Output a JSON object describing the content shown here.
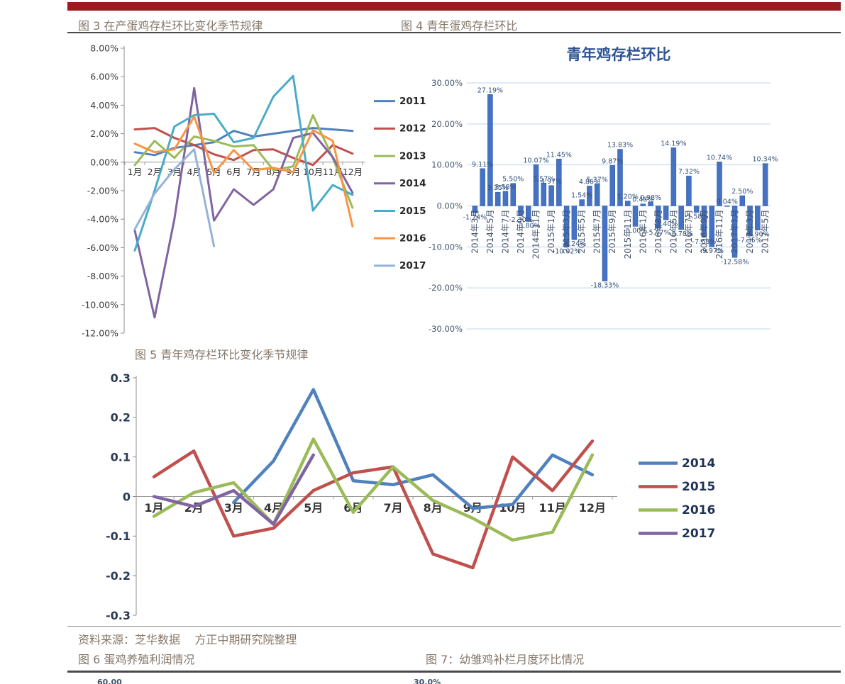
{
  "page": {
    "topbar_color": "#9c1b21"
  },
  "captions": {
    "fig3": "图 3 在产蛋鸡存栏环比变化季节规律",
    "fig4": "图 4 青年蛋鸡存栏环比",
    "fig5": "图 5  青年鸡存栏环比变化季节规律",
    "source": "资料来源：芝华数据    方正中期研究院整理",
    "fig6": "图 6 蛋鸡养殖利润情况",
    "fig7": "图 7：幼雏鸡补栏月度环比情况"
  },
  "partials": {
    "fig6_tick": "60.00",
    "fig7_tick": "30.0%"
  },
  "chart_data": [
    {
      "id": "fig3",
      "type": "line",
      "title": "",
      "caption": "图 3 在产蛋鸡存栏环比变化季节规律",
      "categories": [
        "1月",
        "2月",
        "3月",
        "4月",
        "5月",
        "6月",
        "7月",
        "8月",
        "9月",
        "10月",
        "11月",
        "12月"
      ],
      "series": [
        {
          "name": "2011",
          "color": "#4F81BD",
          "values": [
            0.7,
            0.5,
            1.0,
            1.2,
            1.4,
            2.2,
            1.8,
            2.0,
            2.2,
            2.4,
            2.3,
            2.2
          ]
        },
        {
          "name": "2012",
          "color": "#C0504D",
          "values": [
            2.3,
            2.4,
            1.7,
            1.2,
            0.55,
            0.15,
            0.85,
            0.9,
            0.3,
            -0.2,
            1.2,
            0.6
          ]
        },
        {
          "name": "2013",
          "color": "#9BBB59",
          "values": [
            -0.2,
            1.5,
            0.3,
            1.8,
            1.5,
            1.1,
            1.2,
            -0.55,
            -0.3,
            3.3,
            0.3,
            -3.2
          ]
        },
        {
          "name": "2014",
          "color": "#8064A2",
          "values": [
            -4.8,
            -10.9,
            -4.0,
            5.2,
            -4.1,
            -1.9,
            -3.0,
            -1.9,
            1.7,
            2.05,
            0.35,
            -2.15
          ]
        },
        {
          "name": "2015",
          "color": "#4BACC6",
          "values": [
            -6.2,
            -2.0,
            2.5,
            3.3,
            3.4,
            1.4,
            1.7,
            4.6,
            6.05,
            -3.4,
            -1.6,
            -2.3
          ]
        },
        {
          "name": "2016",
          "color": "#F79646",
          "values": [
            1.3,
            0.7,
            0.9,
            3.2,
            -0.75,
            0.85,
            -0.55,
            -0.4,
            -0.7,
            2.25,
            1.5,
            -4.5
          ]
        },
        {
          "name": "2017",
          "color": "#95B3D7",
          "values": [
            -4.7,
            -2.2,
            -0.5,
            0.9,
            -5.9,
            null,
            null,
            null,
            null,
            null,
            null,
            null
          ]
        }
      ],
      "ylim": [
        -12,
        8
      ],
      "ystep": 2,
      "ytick_format": "percent2",
      "grid": false,
      "legend_position": "right",
      "axis_color": "#3a3a3a"
    },
    {
      "id": "fig4",
      "type": "bar",
      "title": "青年鸡存栏环比",
      "caption": "图 4 青年蛋鸡存栏环比",
      "title_color": "#2E5395",
      "bar_color": "#4472C4",
      "bar_edge_color": "#2E5597",
      "label_color": "#35527C",
      "axis_color": "#44546A",
      "grid_color": "#BDD7EE",
      "categories": [
        "2014年3月",
        "2014年4月",
        "2014年5月",
        "2014年6月",
        "2014年7月",
        "2014年8月",
        "2014年9月",
        "2014年10月",
        "2014年11月",
        "2014年12月",
        "2015年1月",
        "2015年2月",
        "2015年3月",
        "2015年4月",
        "2015年5月",
        "2015年6月",
        "2015年7月",
        "2015年8月",
        "2015年9月",
        "2015年10月",
        "2015年11月",
        "2015年12月",
        "2016年1月",
        "2016年2月",
        "2016年3月",
        "2016年4月",
        "2016年5月",
        "2016年6月",
        "2016年7月",
        "2016年8月",
        "2016年9月",
        "2016年10月",
        "2016年11月",
        "2016年12月",
        "2017年1月",
        "2017年2月",
        "2017年3月",
        "2017年4月",
        "2017年5月"
      ],
      "values": [
        -1.74,
        9.11,
        27.19,
        3.35,
        3.58,
        5.5,
        -2.3,
        -3.8,
        10.07,
        5.57,
        4.97,
        11.45,
        -10.02,
        -8.24,
        1.54,
        4.86,
        5.37,
        -18.33,
        9.87,
        13.83,
        1.2,
        -5.0,
        0.48,
        0.98,
        -5.47,
        -3.4,
        14.19,
        -5.78,
        7.32,
        -1.58,
        -7.68,
        -9.97,
        10.74,
        0.04,
        -12.58,
        2.5,
        -7.35,
        -5.9,
        10.34
      ],
      "ylim": [
        -30,
        30
      ],
      "ystep": 10,
      "ytick_format": "percent2",
      "grid": true,
      "data_labels": true
    },
    {
      "id": "fig5",
      "type": "line",
      "title": "",
      "caption": "图 5  青年鸡存栏环比变化季节规律",
      "categories": [
        "1月",
        "2月",
        "3月",
        "4月",
        "5月",
        "6月",
        "7月",
        "8月",
        "9月",
        "10月",
        "11月",
        "12月"
      ],
      "series": [
        {
          "name": "2014",
          "color": "#4F81BD",
          "values": [
            null,
            null,
            -0.015,
            0.09,
            0.27,
            0.04,
            0.03,
            0.055,
            -0.03,
            -0.02,
            0.105,
            0.055
          ]
        },
        {
          "name": "2015",
          "color": "#C0504D",
          "values": [
            0.05,
            0.115,
            -0.1,
            -0.08,
            0.015,
            0.06,
            0.075,
            -0.145,
            -0.18,
            0.1,
            0.015,
            0.14
          ]
        },
        {
          "name": "2016",
          "color": "#9BBB59",
          "values": [
            -0.05,
            0.01,
            0.035,
            -0.07,
            0.145,
            -0.04,
            0.075,
            -0.01,
            -0.055,
            -0.11,
            -0.09,
            0.105
          ]
        },
        {
          "name": "2017",
          "color": "#8064A2",
          "values": [
            0.0,
            -0.025,
            0.015,
            -0.07,
            0.105,
            null,
            null,
            null,
            null,
            null,
            null,
            null
          ]
        }
      ],
      "ylim": [
        -0.3,
        0.3
      ],
      "ystep": 0.1,
      "ytick_format": "plain1",
      "grid": false,
      "legend_position": "right",
      "axis_color": "#2b3a55"
    }
  ]
}
